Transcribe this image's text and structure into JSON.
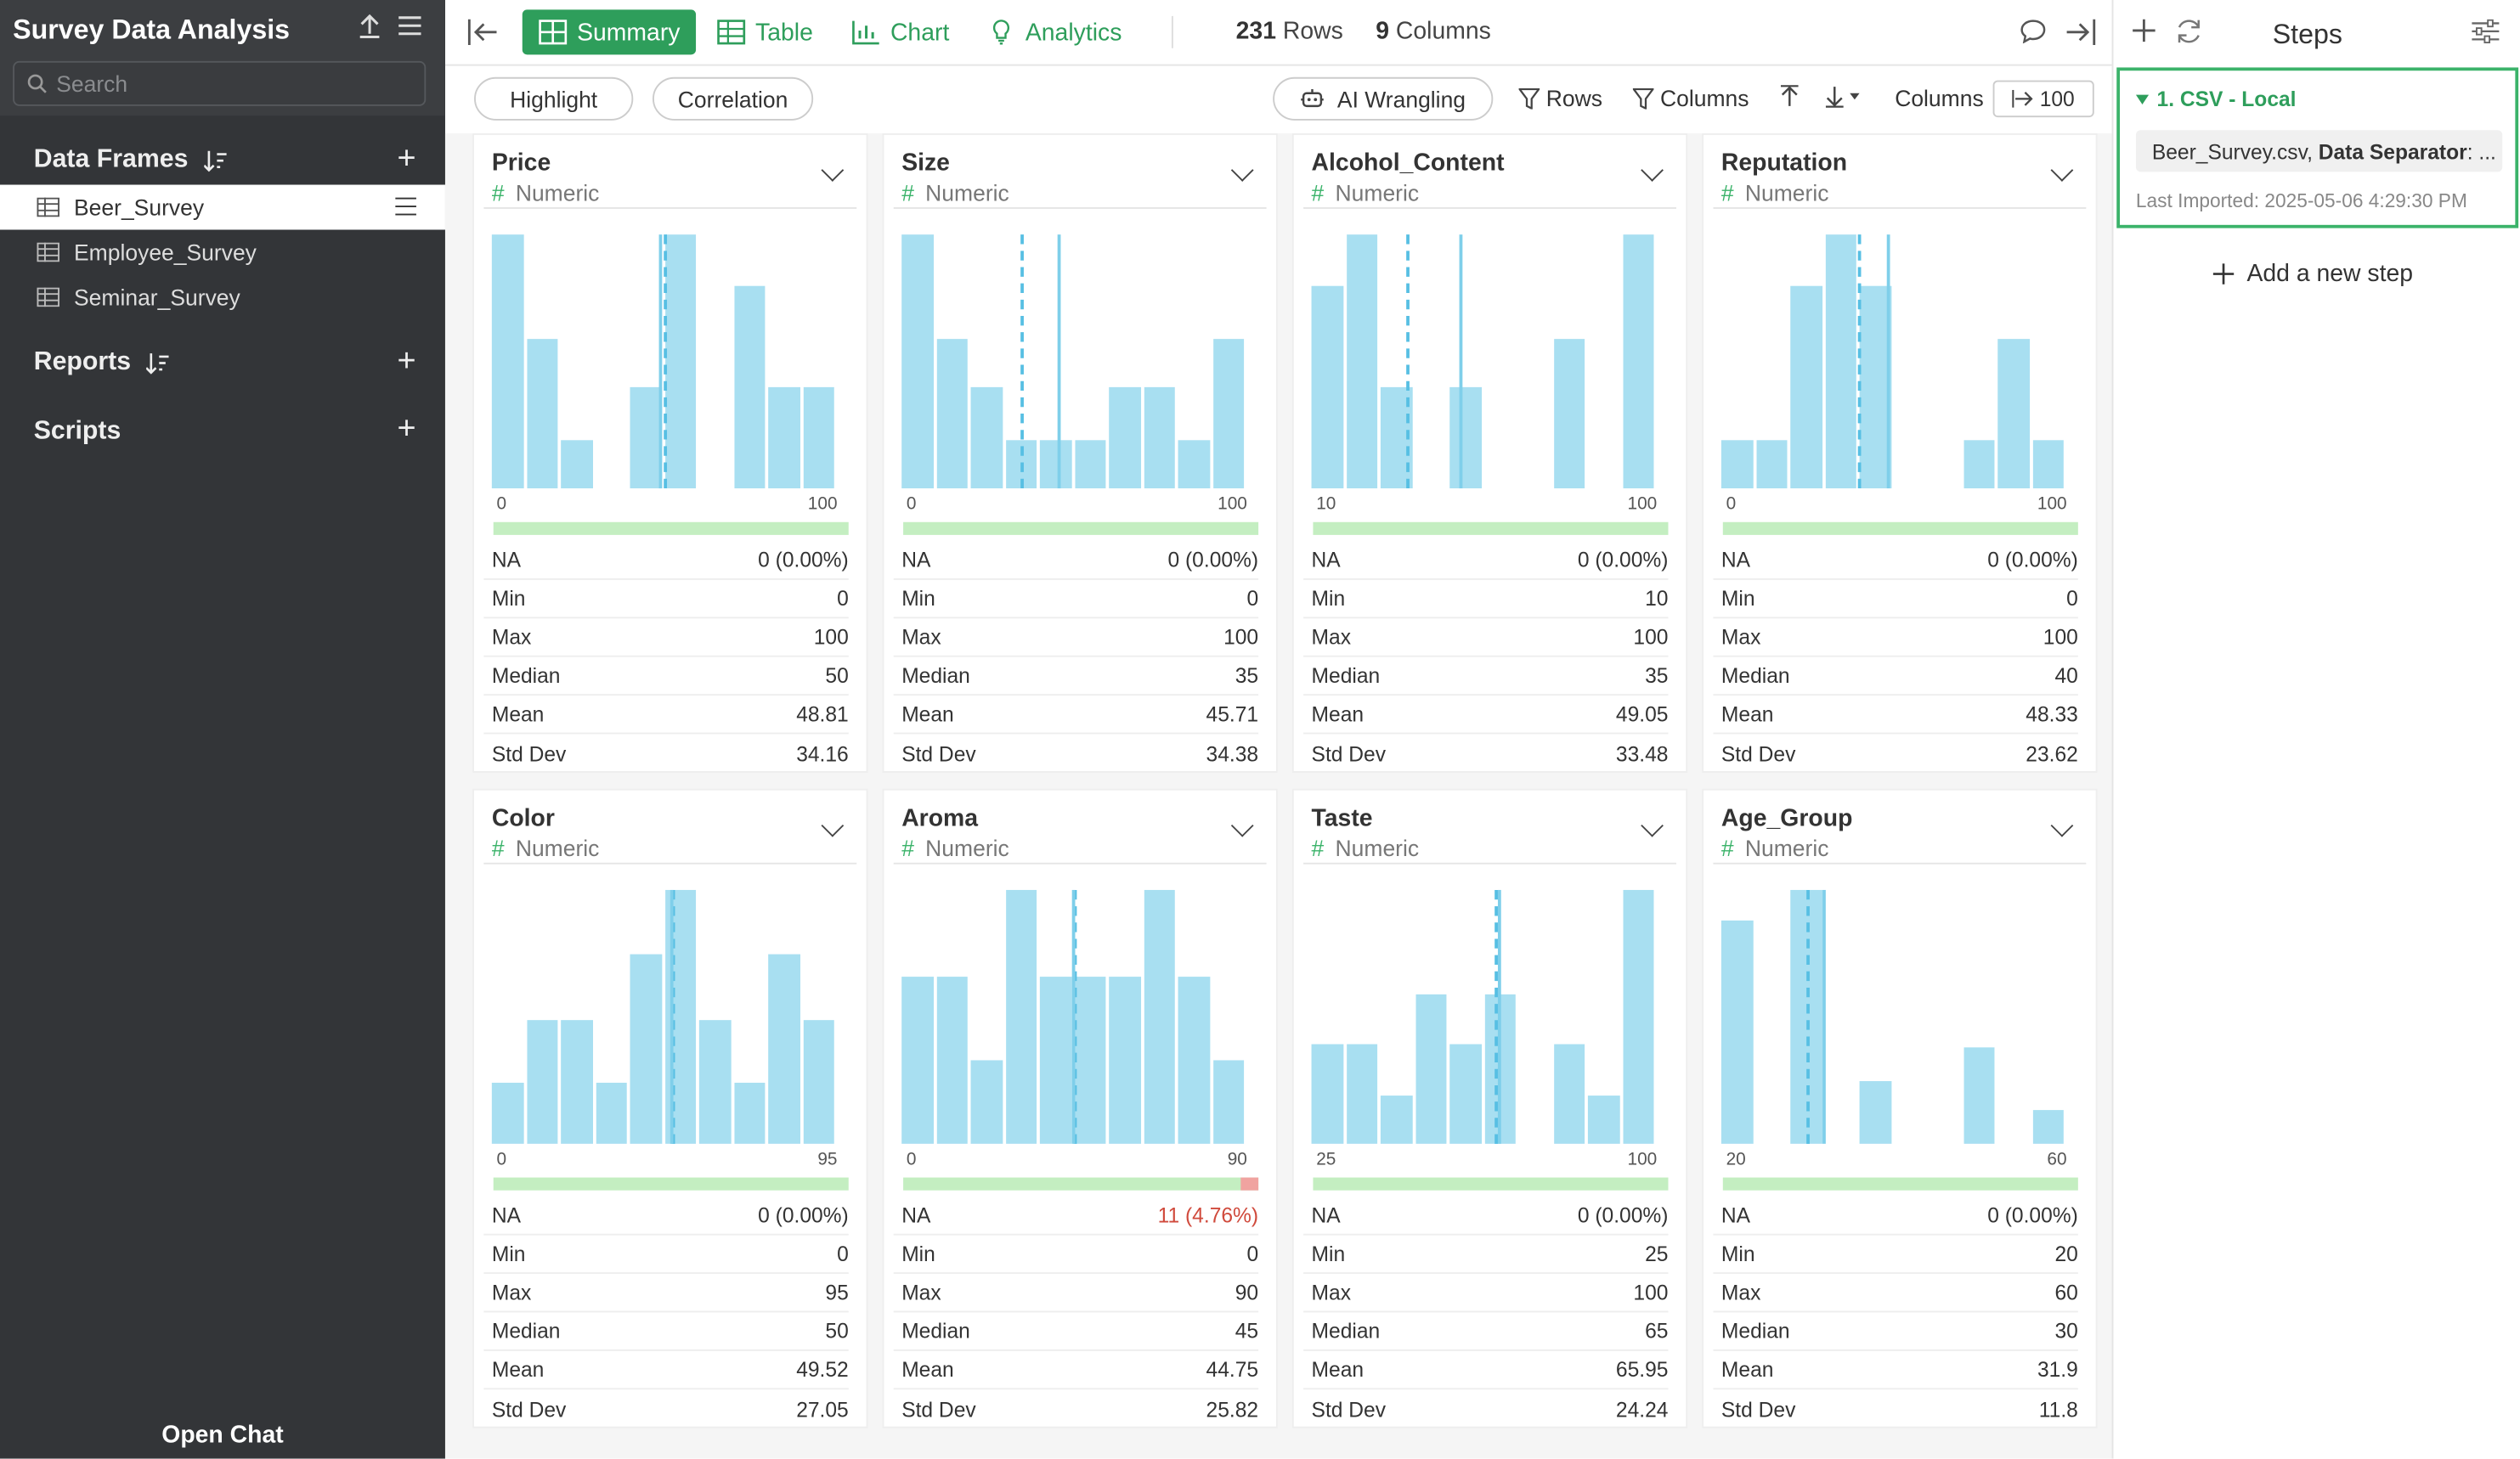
{
  "app": {
    "title": "Survey Data Analysis"
  },
  "search": {
    "placeholder": "Search"
  },
  "sidebar": {
    "data_frames_label": "Data Frames",
    "data_frames": [
      {
        "label": "Beer_Survey"
      },
      {
        "label": "Employee_Survey"
      },
      {
        "label": "Seminar_Survey"
      }
    ],
    "reports_label": "Reports",
    "scripts_label": "Scripts",
    "open_chat": "Open Chat"
  },
  "toolbar": {
    "tabs": [
      {
        "label": "Summary",
        "icon": "summary-icon"
      },
      {
        "label": "Table",
        "icon": "table-icon"
      },
      {
        "label": "Chart",
        "icon": "chart-icon"
      },
      {
        "label": "Analytics",
        "icon": "lightbulb-icon"
      }
    ],
    "rows_count": "231",
    "rows_label": "Rows",
    "columns_count": "9",
    "columns_label": "Columns"
  },
  "secondary": {
    "highlight": "Highlight",
    "correlation": "Correlation",
    "ai_wrangling": "AI Wrangling",
    "rows": "Rows",
    "columns": "Columns",
    "columns_label": "Columns",
    "columns_limit": "100"
  },
  "stat_labels": [
    "NA",
    "Min",
    "Max",
    "Median",
    "Mean",
    "Std Dev"
  ],
  "columns": [
    {
      "name": "Price",
      "type": "Numeric",
      "ticks": [
        "0",
        "100"
      ],
      "na_missing_frac": 0,
      "hist": [
        100,
        59,
        19,
        0,
        40,
        100,
        0,
        80,
        40,
        40
      ],
      "median_frac": 0.5,
      "mean_frac": 0.488,
      "stats": [
        "0 (0.00%)",
        "0",
        "100",
        "50",
        "48.81",
        "34.16"
      ]
    },
    {
      "name": "Size",
      "type": "Numeric",
      "ticks": [
        "0",
        "100"
      ],
      "na_missing_frac": 0,
      "hist": [
        100,
        59,
        40,
        19,
        19,
        19,
        40,
        40,
        19,
        59
      ],
      "median_frac": 0.35,
      "mean_frac": 0.457,
      "stats": [
        "0 (0.00%)",
        "0",
        "100",
        "35",
        "45.71",
        "34.38"
      ]
    },
    {
      "name": "Alcohol_Content",
      "type": "Numeric",
      "ticks": [
        "10",
        "100"
      ],
      "na_missing_frac": 0,
      "hist": [
        80,
        100,
        40,
        0,
        40,
        0,
        0,
        59,
        0,
        100
      ],
      "median_frac": 0.278,
      "mean_frac": 0.434,
      "stats": [
        "0 (0.00%)",
        "10",
        "100",
        "35",
        "49.05",
        "33.48"
      ]
    },
    {
      "name": "Reputation",
      "type": "Numeric",
      "ticks": [
        "0",
        "100"
      ],
      "na_missing_frac": 0,
      "hist": [
        19,
        19,
        80,
        100,
        80,
        0,
        0,
        19,
        59,
        19
      ],
      "median_frac": 0.4,
      "mean_frac": 0.483,
      "stats": [
        "0 (0.00%)",
        "0",
        "100",
        "40",
        "48.33",
        "23.62"
      ]
    },
    {
      "name": "Color",
      "type": "Numeric",
      "ticks": [
        "0",
        "95"
      ],
      "na_missing_frac": 0,
      "hist": [
        24,
        49,
        49,
        24,
        75,
        100,
        49,
        24,
        75,
        49
      ],
      "median_frac": 0.526,
      "mean_frac": 0.521,
      "stats": [
        "0 (0.00%)",
        "0",
        "95",
        "50",
        "49.52",
        "27.05"
      ]
    },
    {
      "name": "Aroma",
      "type": "Numeric",
      "ticks": [
        "0",
        "90"
      ],
      "na_missing_frac": 0.0476,
      "hist": [
        66,
        66,
        33,
        100,
        66,
        66,
        66,
        100,
        66,
        33
      ],
      "median_frac": 0.5,
      "mean_frac": 0.497,
      "stats": [
        "11 (4.76%)",
        "0",
        "90",
        "45",
        "44.75",
        "25.82"
      ]
    },
    {
      "name": "Taste",
      "type": "Numeric",
      "ticks": [
        "25",
        "100"
      ],
      "na_missing_frac": 0,
      "hist": [
        39,
        39,
        19,
        59,
        39,
        59,
        0,
        39,
        19,
        100
      ],
      "median_frac": 0.533,
      "mean_frac": 0.546,
      "stats": [
        "0 (0.00%)",
        "25",
        "100",
        "65",
        "65.95",
        "24.24"
      ]
    },
    {
      "name": "Age_Group",
      "type": "Numeric",
      "ticks": [
        "20",
        "60"
      ],
      "na_missing_frac": 0,
      "hist": [
        88,
        0,
        100,
        0,
        25,
        0,
        0,
        38,
        0,
        13
      ],
      "median_frac": 0.25,
      "mean_frac": 0.297,
      "stats": [
        "0 (0.00%)",
        "20",
        "60",
        "30",
        "31.9",
        "11.8"
      ]
    }
  ],
  "steps": {
    "title": "Steps",
    "items": [
      {
        "title": "1. CSV - Local",
        "file": "Beer_Survey.csv, ",
        "bold": "Data Separator",
        "rest": ": ...",
        "date": "Last Imported: 2025-05-06 4:29:30 PM"
      }
    ],
    "add_label": "Add a new step"
  },
  "colors": {
    "accent": "#2e9e5b",
    "bar": "#a8dff1",
    "line": "#57bfe3",
    "na_ok": "#c4eec1",
    "na_missing": "#f0a3a0",
    "sidebar": "#333538"
  }
}
